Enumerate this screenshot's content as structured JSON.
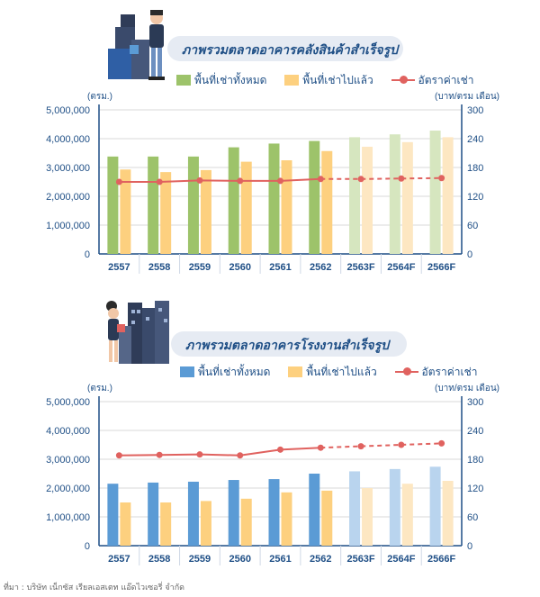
{
  "colors": {
    "green": "#9dc36a",
    "green_light": "#d6e6bf",
    "orange": "#fdd07f",
    "orange_light": "#fde7c2",
    "blue": "#5b9bd5",
    "blue_light": "#b9d4ee",
    "rate": "#e0625f",
    "axis": "#1f4f86"
  },
  "chart_data": [
    {
      "type": "bar",
      "title": "ภาพรวมตลาดอาคารคลังสินค้าสำเร็จรูป",
      "ylabel_left": "(ตรม.)",
      "ylabel_right": "(บาท/ตรม เดือน)",
      "categories": [
        "2557",
        "2558",
        "2559",
        "2560",
        "2561",
        "2562",
        "2563F",
        "2564F",
        "2566F"
      ],
      "ylim": [
        0,
        5000000
      ],
      "yticks": [
        "0",
        "1,000,000",
        "2,000,000",
        "3,000,000",
        "4,000,000",
        "5,000,000"
      ],
      "y2lim": [
        0,
        300
      ],
      "y2ticks": [
        "0",
        "60",
        "120",
        "180",
        "240",
        "300"
      ],
      "forecast_from_index": 6,
      "series": [
        {
          "name": "พื้นที่เช่าทั้งหมด",
          "kind": "bar",
          "values": [
            3380000,
            3380000,
            3380000,
            3700000,
            3830000,
            3920000,
            4050000,
            4150000,
            4280000
          ]
        },
        {
          "name": "พื้นที่เช่าไปแล้ว",
          "kind": "bar",
          "values": [
            2930000,
            2840000,
            2910000,
            3200000,
            3250000,
            3570000,
            3720000,
            3880000,
            4050000
          ]
        },
        {
          "name": "อัตราค่าเช่า",
          "kind": "line",
          "axis": "right",
          "values": [
            150,
            150,
            153,
            152,
            152,
            156,
            156,
            157,
            158
          ]
        }
      ]
    },
    {
      "type": "bar",
      "title": "ภาพรวมตลาดอาคารโรงงานสำเร็จรูป",
      "ylabel_left": "(ตรม.)",
      "ylabel_right": "(บาท/ตรม เดือน)",
      "categories": [
        "2557",
        "2558",
        "2559",
        "2560",
        "2561",
        "2562",
        "2563F",
        "2564F",
        "2566F"
      ],
      "ylim": [
        0,
        5000000
      ],
      "yticks": [
        "0",
        "1,000,000",
        "2,000,000",
        "3,000,000",
        "4,000,000",
        "5,000,000"
      ],
      "y2lim": [
        0,
        300
      ],
      "y2ticks": [
        "0",
        "60",
        "120",
        "180",
        "240",
        "300"
      ],
      "forecast_from_index": 6,
      "series": [
        {
          "name": "พื้นที่เช่าทั้งหมด",
          "kind": "bar",
          "values": [
            2150000,
            2190000,
            2220000,
            2280000,
            2310000,
            2500000,
            2580000,
            2660000,
            2740000
          ]
        },
        {
          "name": "พื้นที่เช่าไปแล้ว",
          "kind": "bar",
          "values": [
            1500000,
            1500000,
            1550000,
            1630000,
            1850000,
            1910000,
            2000000,
            2150000,
            2250000
          ]
        },
        {
          "name": "อัตราค่าเช่า",
          "kind": "line",
          "axis": "right",
          "values": [
            188,
            189,
            190,
            188,
            200,
            204,
            207,
            210,
            213
          ]
        }
      ]
    }
  ],
  "source": "ที่มา : บริษัท เน็กซัส เรียลเอสเตท แอ๊ดไวเซอรี่ จำกัด"
}
